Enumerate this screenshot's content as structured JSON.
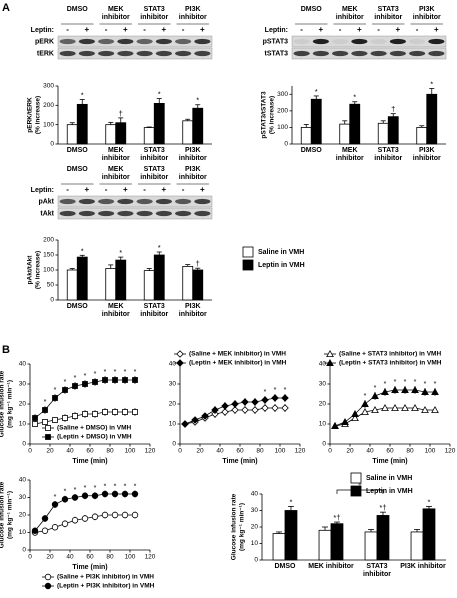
{
  "panel_labels": [
    "A",
    "B"
  ],
  "chart_data": [
    {
      "type": "bar",
      "ylabel": [
        "pERK/tERK",
        "(% increase)"
      ],
      "blot": {
        "treatment_label": "Leptin:",
        "signs": [
          "-",
          "+"
        ],
        "rows": [
          "pERK",
          "tERK"
        ]
      },
      "categories": [
        "DMSO",
        "MEK inhibitor",
        "STAT3 inhibitor",
        "PI3K inhibitor"
      ],
      "series": [
        {
          "name": "Saline in VMH",
          "color": "#ffffff",
          "values": [
            100,
            100,
            85,
            120
          ],
          "errors": [
            10,
            12,
            3,
            8
          ],
          "annotations": [
            null,
            null,
            null,
            null
          ]
        },
        {
          "name": "Leptin in VMH",
          "color": "#000000",
          "values": [
            205,
            110,
            210,
            185
          ],
          "errors": [
            25,
            25,
            25,
            18
          ],
          "annotations": [
            "*",
            "†",
            "*",
            "*"
          ]
        }
      ],
      "ylim": [
        0,
        300
      ],
      "yticks": [
        0,
        100,
        200,
        300
      ]
    },
    {
      "type": "bar",
      "ylabel": [
        "pSTAT3/tSTAT3",
        "(% increase)"
      ],
      "blot": {
        "treatment_label": "Leptin:",
        "signs": [
          "-",
          "+"
        ],
        "rows": [
          "pSTAT3",
          "tSTAT3"
        ]
      },
      "categories": [
        "DMSO",
        "MEK inhibitor",
        "STAT3 inhibitor",
        "PI3K inhibitor"
      ],
      "series": [
        {
          "name": "Saline in VMH",
          "color": "#ffffff",
          "values": [
            100,
            120,
            125,
            100
          ],
          "errors": [
            18,
            20,
            15,
            10
          ],
          "annotations": [
            null,
            null,
            null,
            null
          ]
        },
        {
          "name": "Leptin in VMH",
          "color": "#000000",
          "values": [
            270,
            240,
            165,
            300
          ],
          "errors": [
            20,
            15,
            18,
            35
          ],
          "annotations": [
            "*",
            "*",
            "†",
            "*"
          ]
        }
      ],
      "ylim": [
        0,
        350
      ],
      "yticks": [
        0,
        100,
        200,
        300
      ]
    },
    {
      "type": "bar",
      "ylabel": [
        "pAkt/tAkt",
        "(% increase)"
      ],
      "legend": "right",
      "blot": {
        "treatment_label": "Leptin:",
        "signs": [
          "-",
          "+"
        ],
        "rows": [
          "pAkt",
          "tAkt"
        ]
      },
      "categories": [
        "DMSO",
        "MEK inhibitor",
        "STAT3 inhibitor",
        "PI3K inhibitor"
      ],
      "series": [
        {
          "name": "Saline in VMH",
          "color": "#ffffff",
          "values": [
            100,
            105,
            98,
            112
          ],
          "errors": [
            5,
            12,
            7,
            6
          ],
          "annotations": [
            null,
            null,
            null,
            null
          ]
        },
        {
          "name": "Leptin in VMH",
          "color": "#000000",
          "values": [
            143,
            133,
            150,
            100
          ],
          "errors": [
            6,
            10,
            10,
            6
          ],
          "annotations": [
            "*",
            "*",
            "*",
            "†"
          ]
        }
      ],
      "ylim": [
        0,
        200
      ],
      "yticks": [
        0,
        50,
        100,
        150,
        200
      ]
    },
    {
      "type": "line",
      "ylabel": [
        "Glucose infusion rate",
        "(mg kg⁻¹ min⁻¹)"
      ],
      "xlabel": "Time (min)",
      "legend": "lower right",
      "x": [
        5,
        15,
        25,
        35,
        45,
        55,
        65,
        75,
        85,
        95,
        105
      ],
      "series": [
        {
          "name": "(Saline + DMSO) in VMH",
          "color": "#ffffff",
          "marker": "square",
          "values": [
            10,
            11,
            12,
            13,
            14,
            15,
            15,
            16,
            16,
            16,
            16
          ],
          "errors": [
            1,
            1,
            1.5,
            2,
            2,
            2,
            2,
            2,
            2,
            2,
            2
          ],
          "annotations": [
            null,
            null,
            null,
            null,
            null,
            null,
            null,
            null,
            null,
            null,
            null
          ]
        },
        {
          "name": "(Leptin + DMSO) in VMH",
          "color": "#000000",
          "marker": "square",
          "values": [
            13,
            17,
            23,
            27,
            29,
            30,
            31,
            32,
            32,
            32,
            32
          ],
          "errors": [
            2,
            2,
            2,
            2,
            2,
            2,
            2,
            2,
            2,
            2,
            2
          ],
          "annotations": [
            null,
            "*",
            "*",
            "*",
            "*",
            "*",
            "*",
            "*",
            "*",
            "*",
            "*"
          ]
        }
      ],
      "xlim": [
        0,
        120
      ],
      "xticks": [
        0,
        20,
        40,
        60,
        80,
        100,
        120
      ],
      "ylim": [
        0,
        40
      ],
      "yticks": [
        0,
        10,
        20,
        30,
        40
      ]
    },
    {
      "type": "line",
      "xlabel": "Time (min)",
      "legend": "top",
      "x": [
        5,
        15,
        25,
        35,
        45,
        55,
        65,
        75,
        85,
        95,
        105
      ],
      "series": [
        {
          "name": "(Saline + MEK inhibitor) in VMH",
          "color": "#ffffff",
          "marker": "diamond",
          "values": [
            10,
            11,
            13,
            15,
            16,
            17,
            17,
            17,
            18,
            18,
            18
          ],
          "errors": [
            1,
            1,
            1.5,
            2,
            2,
            2,
            2,
            2,
            2,
            2,
            2
          ],
          "annotations": [
            null,
            null,
            null,
            null,
            null,
            null,
            null,
            null,
            null,
            null,
            null
          ]
        },
        {
          "name": "(Leptin + MEK inhibitor) in VMH",
          "color": "#000000",
          "marker": "diamond",
          "values": [
            10,
            12,
            14,
            17,
            19,
            20,
            21,
            21,
            22,
            23,
            23
          ],
          "errors": [
            1,
            1,
            1.5,
            2,
            2,
            2,
            2,
            2,
            2,
            2,
            2
          ],
          "annotations": [
            null,
            null,
            null,
            null,
            null,
            null,
            null,
            null,
            "*",
            "*",
            "*"
          ]
        }
      ],
      "xlim": [
        0,
        120
      ],
      "xticks": [
        0,
        20,
        40,
        60,
        80,
        100,
        120
      ],
      "ylim": [
        0,
        40
      ],
      "yticks": [
        0,
        10,
        20,
        30,
        40
      ]
    },
    {
      "type": "line",
      "xlabel": "Time (min)",
      "legend": "top",
      "x": [
        5,
        15,
        25,
        35,
        45,
        55,
        65,
        75,
        85,
        95,
        105
      ],
      "series": [
        {
          "name": "(Saline + STAT3 inhibitor) in VMH",
          "color": "#ffffff",
          "marker": "triangle",
          "values": [
            9,
            10,
            13,
            16,
            17,
            18,
            18,
            18,
            18,
            17,
            17
          ],
          "errors": [
            1,
            1,
            1.5,
            1.5,
            1.5,
            1.5,
            1.5,
            1.5,
            1.5,
            1.5,
            1.5
          ],
          "annotations": [
            null,
            null,
            null,
            null,
            null,
            null,
            null,
            null,
            null,
            null,
            null
          ]
        },
        {
          "name": "(Leptin + STAT3 inhibitor) in VMH",
          "color": "#000000",
          "marker": "triangle",
          "values": [
            9,
            11,
            15,
            20,
            24,
            26,
            27,
            27,
            27,
            26,
            26
          ],
          "errors": [
            1,
            1,
            1.5,
            2,
            2,
            2,
            2,
            2,
            2,
            2,
            2
          ],
          "annotations": [
            null,
            null,
            null,
            "*",
            "*",
            "*",
            "*",
            "*",
            "*",
            "*",
            "*"
          ]
        }
      ],
      "xlim": [
        0,
        120
      ],
      "xticks": [
        0,
        20,
        40,
        60,
        80,
        100,
        120
      ],
      "ylim": [
        0,
        40
      ],
      "yticks": [
        0,
        10,
        20,
        30,
        40
      ]
    },
    {
      "type": "line",
      "ylabel": [
        "Glucose infusion rate",
        "(mg kg⁻¹ min⁻¹)"
      ],
      "xlabel": "Time (min)",
      "legend": "bottom",
      "x": [
        5,
        15,
        25,
        35,
        45,
        55,
        65,
        75,
        85,
        95,
        105
      ],
      "series": [
        {
          "name": "(Saline + PI3K inhibitor) in VMH",
          "color": "#ffffff",
          "marker": "circle",
          "values": [
            10,
            11,
            13,
            15,
            17,
            18,
            19,
            20,
            20,
            20,
            20
          ],
          "errors": [
            1,
            1,
            1.5,
            2,
            2,
            2,
            2,
            2,
            2,
            2,
            2
          ],
          "annotations": [
            null,
            null,
            null,
            null,
            null,
            null,
            null,
            null,
            null,
            null,
            null
          ]
        },
        {
          "name": "(Leptin + PI3K inhibitor) in VMH",
          "color": "#000000",
          "marker": "circle",
          "values": [
            11,
            18,
            26,
            29,
            30,
            31,
            31,
            32,
            32,
            32,
            32
          ],
          "errors": [
            1,
            2,
            2,
            2,
            2,
            2,
            2,
            2,
            2,
            2,
            2
          ],
          "annotations": [
            null,
            null,
            "*",
            "*",
            "*",
            "*",
            "*",
            "*",
            "*",
            "*",
            "*"
          ]
        }
      ],
      "xlim": [
        0,
        120
      ],
      "xticks": [
        0,
        20,
        40,
        60,
        80,
        100,
        120
      ],
      "ylim": [
        0,
        40
      ],
      "yticks": [
        0,
        10,
        20,
        30,
        40
      ]
    },
    {
      "type": "bar",
      "ylabel": [
        "Glucose infusion rate",
        "(mg kg⁻¹ min⁻¹)"
      ],
      "legend": "upper right",
      "bracket_label": "‡",
      "categories": [
        "DMSO",
        "MEK inhibitor",
        "STAT3 inhibitor",
        "PI3K inhibitor"
      ],
      "series": [
        {
          "name": "Saline in VMH",
          "color": "#ffffff",
          "values": [
            16,
            18,
            17,
            17
          ],
          "errors": [
            1,
            2,
            1.5,
            1.5
          ],
          "annotations": [
            null,
            null,
            null,
            null
          ]
        },
        {
          "name": "Leptin in VMH",
          "color": "#000000",
          "values": [
            30,
            22,
            27,
            31
          ],
          "errors": [
            2.5,
            1,
            2,
            1.5
          ],
          "annotations": [
            "*",
            "*†",
            "*†",
            "*"
          ]
        }
      ],
      "ylim": [
        0,
        40
      ],
      "yticks": [
        0,
        10,
        20,
        30,
        40
      ]
    }
  ]
}
